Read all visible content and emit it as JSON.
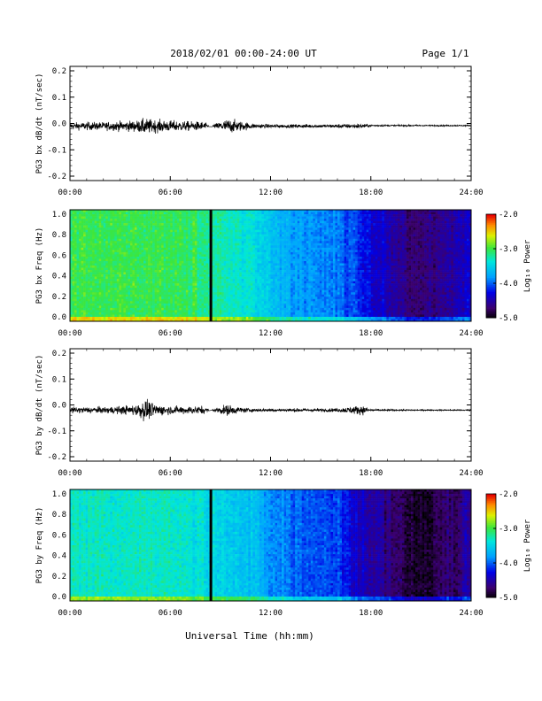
{
  "header": {
    "title": "2018/02/01  00:00-24:00 UT",
    "page": "Page 1/1"
  },
  "footer": {
    "xlabel": "Universal Time (hh:mm)"
  },
  "colorbar": {
    "label": "Log₁₀ Power",
    "ticks": [
      "-2.0",
      "-3.0",
      "-4.0",
      "-5.0"
    ],
    "range": [
      -5.0,
      -2.0
    ]
  },
  "time_ticks": [
    "00:00",
    "06:00",
    "12:00",
    "18:00",
    "24:00"
  ],
  "chart_data": [
    {
      "type": "line",
      "ylabel": "PG3 bx dB/dt (nT/sec)",
      "xlim": [
        0,
        24
      ],
      "ylim": [
        -0.2,
        0.2
      ],
      "yticks": [
        "0.2",
        "0.1",
        "0.0",
        "-0.1",
        "-0.2"
      ],
      "xticks": [
        "00:00",
        "06:00",
        "12:00",
        "18:00",
        "24:00"
      ],
      "series": [
        {
          "x": [
            0,
            1,
            2,
            3,
            4,
            4.5,
            5,
            6,
            7,
            8,
            8.4,
            9,
            9.5,
            10,
            11,
            12,
            13,
            14,
            15,
            16,
            17,
            17.5,
            18,
            19,
            20,
            21,
            22,
            23,
            24
          ],
          "envelope": [
            0.02,
            0.025,
            0.025,
            0.03,
            0.035,
            0.05,
            0.04,
            0.035,
            0.03,
            0.028,
            0.0,
            0.03,
            0.045,
            0.035,
            0.015,
            0.012,
            0.01,
            0.012,
            0.01,
            0.012,
            0.015,
            0.015,
            0.006,
            0.005,
            0.005,
            0.004,
            0.004,
            0.004,
            0.004
          ],
          "baseline": [
            -0.01,
            -0.01,
            -0.01,
            -0.01,
            -0.01,
            -0.012,
            -0.01,
            -0.01,
            -0.01,
            -0.01,
            -0.01,
            -0.01,
            -0.01,
            -0.01,
            -0.01,
            -0.01,
            -0.01,
            -0.01,
            -0.01,
            -0.01,
            -0.01,
            -0.01,
            -0.008,
            -0.008,
            -0.008,
            -0.008,
            -0.008,
            -0.008,
            -0.008
          ]
        }
      ],
      "gaps": [
        [
          8.3,
          8.5
        ]
      ]
    },
    {
      "type": "heatmap",
      "ylabel": "PG3 bx Freq (Hz)",
      "xlim": [
        0,
        24
      ],
      "ylim": [
        0.0,
        1.0
      ],
      "yticks": [
        "1.0",
        "0.8",
        "0.6",
        "0.4",
        "0.2",
        "0.0"
      ],
      "xticks": [
        "00:00",
        "06:00",
        "12:00",
        "18:00",
        "24:00"
      ],
      "colorbar_range": [
        -5.0,
        -2.0
      ],
      "level_profile": {
        "hours": [
          0,
          3,
          6,
          8,
          9,
          11,
          12,
          14,
          16,
          18,
          19,
          20,
          21,
          22,
          23,
          24
        ],
        "log_power": [
          -3.0,
          -3.0,
          -3.0,
          -3.1,
          -3.2,
          -3.4,
          -3.6,
          -3.8,
          -3.9,
          -4.3,
          -4.4,
          -4.6,
          -4.7,
          -4.6,
          -4.5,
          -4.3
        ]
      },
      "data_gap_hours": [
        8.35,
        8.5
      ]
    },
    {
      "type": "line",
      "ylabel": "PG3 by dB/dt (nT/sec)",
      "xlim": [
        0,
        24
      ],
      "ylim": [
        -0.2,
        0.2
      ],
      "yticks": [
        "0.2",
        "0.1",
        "0.0",
        "-0.1",
        "-0.2"
      ],
      "xticks": [
        "00:00",
        "06:00",
        "12:00",
        "18:00",
        "24:00"
      ],
      "series": [
        {
          "x": [
            0,
            1,
            2,
            3,
            4,
            4.5,
            5,
            6,
            7,
            8,
            8.4,
            9,
            9.5,
            10,
            11,
            12,
            13,
            14,
            15,
            16,
            17,
            17.5,
            18,
            19,
            20,
            21,
            22,
            23,
            24
          ],
          "envelope": [
            0.02,
            0.02,
            0.02,
            0.025,
            0.035,
            0.07,
            0.04,
            0.025,
            0.025,
            0.025,
            0.0,
            0.025,
            0.035,
            0.02,
            0.01,
            0.01,
            0.01,
            0.012,
            0.01,
            0.012,
            0.025,
            0.03,
            0.006,
            0.005,
            0.005,
            0.004,
            0.004,
            0.004,
            0.004
          ],
          "baseline": [
            -0.02,
            -0.02,
            -0.02,
            -0.02,
            -0.02,
            -0.02,
            -0.02,
            -0.02,
            -0.02,
            -0.02,
            -0.02,
            -0.02,
            -0.02,
            -0.02,
            -0.02,
            -0.02,
            -0.02,
            -0.02,
            -0.02,
            -0.02,
            -0.02,
            -0.02,
            -0.02,
            -0.02,
            -0.02,
            -0.02,
            -0.02,
            -0.02,
            -0.02
          ]
        }
      ],
      "gaps": [
        [
          8.3,
          8.5
        ]
      ]
    },
    {
      "type": "heatmap",
      "ylabel": "PG3 by Freq (Hz)",
      "xlim": [
        0,
        24
      ],
      "ylim": [
        0.0,
        1.0
      ],
      "yticks": [
        "1.0",
        "0.8",
        "0.6",
        "0.4",
        "0.2",
        "0.0"
      ],
      "xticks": [
        "00:00",
        "06:00",
        "12:00",
        "18:00",
        "24:00"
      ],
      "colorbar_range": [
        -5.0,
        -2.0
      ],
      "level_profile": {
        "hours": [
          0,
          3,
          6,
          8,
          9,
          11,
          12,
          14,
          16,
          18,
          19,
          20,
          21,
          22,
          23,
          24
        ],
        "log_power": [
          -3.3,
          -3.3,
          -3.3,
          -3.4,
          -3.5,
          -3.6,
          -3.8,
          -4.0,
          -4.1,
          -4.5,
          -4.6,
          -4.8,
          -4.9,
          -4.8,
          -4.7,
          -4.5
        ]
      },
      "data_gap_hours": [
        8.35,
        8.5
      ]
    }
  ]
}
